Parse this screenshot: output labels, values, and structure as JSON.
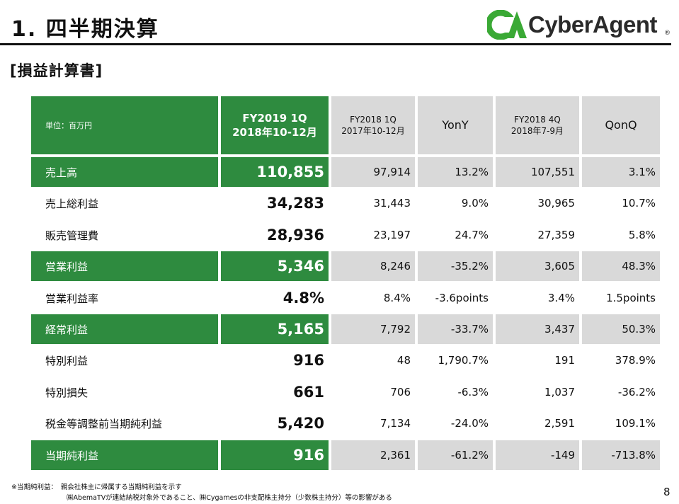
{
  "header": {
    "title": "1. 四半期決算",
    "subtitle": "[損益計算書]",
    "logo_text": "CyberAgent",
    "logo_reg": "®"
  },
  "colors": {
    "green": "#2e8b3f",
    "gray": "#d9d9d9",
    "logo_green": "#3aa935"
  },
  "table": {
    "unit_label": "単位：百万円",
    "columns": [
      {
        "line1": "FY2019 1Q",
        "line2": "2018年10-12月"
      },
      {
        "line1": "FY2018 1Q",
        "line2": "2017年10-12月"
      },
      {
        "line1": "YonY"
      },
      {
        "line1": "FY2018 4Q",
        "line2": "2018年7-9月"
      },
      {
        "line1": "QonQ"
      }
    ],
    "rows": [
      {
        "label": "売上高",
        "cur": "110,855",
        "prev_year": "97,914",
        "yony": "13.2%",
        "prev_q": "107,551",
        "qonq": "3.1%"
      },
      {
        "label": "売上総利益",
        "cur": "34,283",
        "prev_year": "31,443",
        "yony": "9.0%",
        "prev_q": "30,965",
        "qonq": "10.7%"
      },
      {
        "label": "販売管理費",
        "cur": "28,936",
        "prev_year": "23,197",
        "yony": "24.7%",
        "prev_q": "27,359",
        "qonq": "5.8%"
      },
      {
        "label": "営業利益",
        "cur": "5,346",
        "prev_year": "8,246",
        "yony": "-35.2%",
        "prev_q": "3,605",
        "qonq": "48.3%"
      },
      {
        "label": "営業利益率",
        "cur": "4.8%",
        "prev_year": "8.4%",
        "yony": "-3.6points",
        "prev_q": "3.4%",
        "qonq": "1.5points"
      },
      {
        "label": "経常利益",
        "cur": "5,165",
        "prev_year": "7,792",
        "yony": "-33.7%",
        "prev_q": "3,437",
        "qonq": "50.3%"
      },
      {
        "label": "特別利益",
        "cur": "916",
        "prev_year": "48",
        "yony": "1,790.7%",
        "prev_q": "191",
        "qonq": "378.9%"
      },
      {
        "label": "特別損失",
        "cur": "661",
        "prev_year": "706",
        "yony": "-6.3%",
        "prev_q": "1,037",
        "qonq": "-36.2%"
      },
      {
        "label": "税金等調整前当期純利益",
        "cur": "5,420",
        "prev_year": "7,134",
        "yony": "-24.0%",
        "prev_q": "2,591",
        "qonq": "109.1%"
      },
      {
        "label": "当期純利益",
        "cur": "916",
        "prev_year": "2,361",
        "yony": "-61.2%",
        "prev_q": "-149",
        "qonq": "-713.8%"
      }
    ]
  },
  "footnote": {
    "line1": "※当期純利益：　親会社株主に帰属する当期純利益を示す",
    "line2": "㈱AbemaTVが連結納税対象外であること、㈱Cygamesの非支配株主持分（少数株主持分）等の影響がある"
  },
  "page_number": "8"
}
